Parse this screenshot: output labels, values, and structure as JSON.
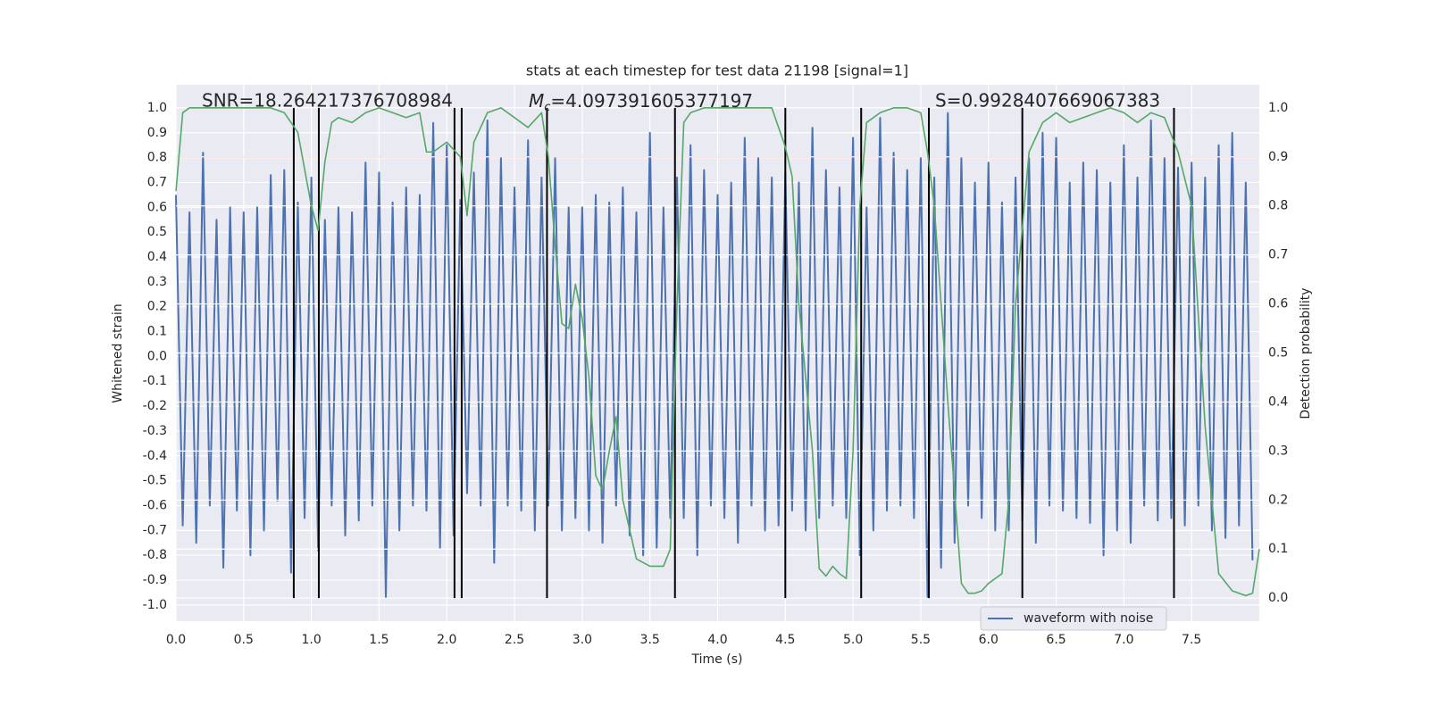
{
  "chart_data": {
    "type": "line",
    "title": "stats at each timestep for test data 21198 [signal=1]",
    "xlabel": "Time (s)",
    "ylabel": "Whitened strain",
    "y2label": "Detection probability",
    "annotations": [
      "SNR=18.264217376708984",
      "S=0.9928407669067383"
    ],
    "mc_annotation": {
      "symbol": "M",
      "subscript": "c",
      "text": "=4.097391605377197"
    },
    "xlim": [
      0,
      8
    ],
    "xticks": [
      {
        "value": 0,
        "label": "0.0"
      },
      0.5,
      {
        "value": 1,
        "label": "1.0"
      },
      1.5,
      {
        "value": 2,
        "label": "2.0"
      },
      2.5,
      {
        "value": 3,
        "label": "3.0"
      },
      3.5,
      {
        "value": 4,
        "label": "4.0"
      },
      4.5,
      {
        "value": 5,
        "label": "5.0"
      },
      5.5,
      {
        "value": 6,
        "label": "6.0"
      },
      6.5,
      {
        "value": 7,
        "label": "7.0"
      },
      7.5
    ],
    "ylim": [
      -1.065,
      1.093
    ],
    "yticks": [
      {
        "value": -1,
        "label": "-1.0"
      },
      -0.9,
      -0.8,
      -0.7,
      -0.6,
      -0.5,
      -0.4,
      -0.3,
      -0.2,
      -0.1,
      {
        "value": 0,
        "label": "0.0"
      },
      0.1,
      0.2,
      0.3,
      0.4,
      0.5,
      0.6,
      0.7,
      0.8,
      0.9,
      {
        "value": 1,
        "label": "1.0"
      }
    ],
    "y2lim": [
      -0.047,
      1.047
    ],
    "y2ticks": [
      {
        "value": 0,
        "label": "0.0"
      },
      0.1,
      0.2,
      0.3,
      0.4,
      0.5,
      0.6,
      0.7,
      0.8,
      0.9,
      {
        "value": 1,
        "label": "1.0"
      }
    ],
    "grid": true,
    "legend": "lower right",
    "threshold": 0.9,
    "threshold_color": "#c03d3e",
    "vlines": [
      0.87,
      1.055,
      2.057,
      2.11,
      2.74,
      3.685,
      4.5,
      5.06,
      5.56,
      6.25,
      7.37
    ],
    "vline_range": [
      0,
      1
    ],
    "vline_color": "#000000",
    "series": [
      {
        "name": "waveform with noise",
        "color": "#4c72b0",
        "x": [
          0,
          0.05,
          0.1,
          0.15,
          0.2,
          0.25,
          0.3,
          0.35,
          0.4,
          0.45,
          0.5,
          0.55,
          0.6,
          0.65,
          0.7,
          0.75,
          0.8,
          0.85,
          0.9,
          0.95,
          1,
          1.05,
          1.1,
          1.15,
          1.2,
          1.25,
          1.3,
          1.35,
          1.4,
          1.45,
          1.5,
          1.55,
          1.6,
          1.65,
          1.7,
          1.75,
          1.8,
          1.85,
          1.9,
          1.95,
          2,
          2.05,
          2.1,
          2.15,
          2.2,
          2.25,
          2.3,
          2.35,
          2.4,
          2.45,
          2.5,
          2.55,
          2.6,
          2.65,
          2.7,
          2.75,
          2.8,
          2.85,
          2.9,
          2.95,
          3,
          3.05,
          3.1,
          3.15,
          3.2,
          3.25,
          3.3,
          3.35,
          3.4,
          3.45,
          3.5,
          3.55,
          3.6,
          3.65,
          3.7,
          3.75,
          3.8,
          3.85,
          3.9,
          3.95,
          4,
          4.05,
          4.1,
          4.15,
          4.2,
          4.25,
          4.3,
          4.35,
          4.4,
          4.45,
          4.5,
          4.55,
          4.6,
          4.65,
          4.7,
          4.75,
          4.8,
          4.85,
          4.9,
          4.95,
          5,
          5.05,
          5.1,
          5.15,
          5.2,
          5.25,
          5.3,
          5.35,
          5.4,
          5.45,
          5.5,
          5.55,
          5.6,
          5.65,
          5.7,
          5.75,
          5.8,
          5.85,
          5.9,
          5.95,
          6,
          6.05,
          6.1,
          6.15,
          6.2,
          6.25,
          6.3,
          6.35,
          6.4,
          6.45,
          6.5,
          6.55,
          6.6,
          6.65,
          6.7,
          6.75,
          6.8,
          6.85,
          6.9,
          6.95,
          7,
          7.05,
          7.1,
          7.15,
          7.2,
          7.25,
          7.3,
          7.35,
          7.4,
          7.45,
          7.5,
          7.55,
          7.6,
          7.65,
          7.7,
          7.75,
          7.8,
          7.85,
          7.9,
          7.95
        ],
        "values": [
          0.65,
          -0.68,
          0.58,
          -0.75,
          0.82,
          -0.6,
          0.55,
          -0.85,
          0.6,
          -0.62,
          0.58,
          -0.8,
          0.6,
          -0.7,
          0.73,
          -0.58,
          0.75,
          -0.87,
          0.62,
          -0.65,
          0.72,
          -0.78,
          0.55,
          -0.6,
          0.6,
          -0.72,
          0.58,
          -0.66,
          0.78,
          -0.6,
          0.74,
          -0.97,
          0.62,
          -0.7,
          0.68,
          -0.6,
          0.65,
          -0.62,
          0.94,
          -0.77,
          0.85,
          -0.72,
          0.63,
          -0.55,
          0.74,
          -0.6,
          0.95,
          -0.83,
          0.8,
          -0.6,
          0.68,
          -0.62,
          0.87,
          -0.7,
          0.72,
          -0.6,
          0.8,
          -0.7,
          0.6,
          -0.65,
          0.6,
          -0.7,
          0.65,
          -0.75,
          0.62,
          -0.6,
          0.68,
          -0.72,
          0.58,
          -0.8,
          0.9,
          -0.77,
          0.6,
          -0.65,
          0.72,
          -0.65,
          0.85,
          -0.8,
          0.75,
          -0.6,
          0.65,
          -0.65,
          0.7,
          -0.75,
          0.88,
          -0.6,
          0.8,
          -0.7,
          0.72,
          -0.68,
          0.74,
          -0.62,
          0.7,
          -0.7,
          0.92,
          -0.65,
          0.75,
          -0.6,
          0.68,
          -0.65,
          0.88,
          -0.8,
          0.6,
          -0.7,
          0.96,
          -0.62,
          0.82,
          -0.6,
          0.75,
          -0.65,
          0.8,
          -0.97,
          0.72,
          -0.85,
          0.98,
          -0.75,
          0.8,
          -0.6,
          0.7,
          -0.65,
          0.78,
          -0.7,
          0.62,
          -0.7,
          0.72,
          -0.66,
          0.8,
          -0.75,
          0.9,
          -0.6,
          0.88,
          -0.62,
          0.7,
          -0.65,
          0.78,
          -0.67,
          0.75,
          -0.8,
          0.7,
          -0.7,
          0.85,
          -0.75,
          0.72,
          -0.6,
          0.95,
          -0.66,
          0.8,
          -0.65,
          0.76,
          -0.68,
          0.78,
          -0.6,
          0.72,
          -0.7,
          0.85,
          -0.73,
          0.9,
          -0.68,
          0.7,
          -0.82
        ]
      },
      {
        "color": "#55a868",
        "axis": "y2",
        "x": [
          0,
          0.05,
          0.1,
          0.2,
          0.3,
          0.4,
          0.5,
          0.6,
          0.7,
          0.8,
          0.9,
          1,
          1.05,
          1.1,
          1.15,
          1.2,
          1.3,
          1.4,
          1.5,
          1.6,
          1.7,
          1.8,
          1.85,
          1.9,
          2,
          2.1,
          2.15,
          2.2,
          2.3,
          2.4,
          2.5,
          2.6,
          2.7,
          2.75,
          2.8,
          2.85,
          2.9,
          2.95,
          3,
          3.05,
          3.1,
          3.15,
          3.2,
          3.25,
          3.3,
          3.4,
          3.5,
          3.6,
          3.65,
          3.7,
          3.75,
          3.8,
          3.9,
          4,
          4.1,
          4.2,
          4.3,
          4.4,
          4.5,
          4.55,
          4.6,
          4.7,
          4.75,
          4.8,
          4.85,
          4.9,
          4.95,
          5,
          5.05,
          5.1,
          5.2,
          5.3,
          5.4,
          5.5,
          5.55,
          5.6,
          5.7,
          5.8,
          5.85,
          5.9,
          5.95,
          6,
          6.1,
          6.15,
          6.2,
          6.3,
          6.4,
          6.5,
          6.6,
          6.7,
          6.8,
          6.9,
          7,
          7.1,
          7.2,
          7.3,
          7.4,
          7.5,
          7.6,
          7.7,
          7.8,
          7.9,
          7.95,
          8
        ],
        "values": [
          0.83,
          0.99,
          1,
          1,
          1,
          1,
          1,
          1,
          1,
          0.99,
          0.95,
          0.8,
          0.75,
          0.89,
          0.97,
          0.98,
          0.97,
          0.99,
          1,
          0.99,
          0.98,
          0.99,
          0.91,
          0.91,
          0.93,
          0.9,
          0.78,
          0.93,
          0.99,
          1,
          0.98,
          0.96,
          0.99,
          0.9,
          0.72,
          0.56,
          0.55,
          0.64,
          0.57,
          0.45,
          0.25,
          0.22,
          0.3,
          0.37,
          0.2,
          0.08,
          0.065,
          0.065,
          0.1,
          0.6,
          0.97,
          0.99,
          1,
          1,
          1,
          1,
          1,
          1,
          0.92,
          0.86,
          0.6,
          0.3,
          0.06,
          0.045,
          0.065,
          0.05,
          0.04,
          0.3,
          0.8,
          0.97,
          0.99,
          1,
          1,
          0.99,
          0.91,
          0.8,
          0.4,
          0.03,
          0.01,
          0.01,
          0.015,
          0.03,
          0.05,
          0.2,
          0.6,
          0.91,
          0.97,
          0.99,
          0.97,
          0.98,
          0.99,
          1,
          0.99,
          0.97,
          0.99,
          0.98,
          0.91,
          0.8,
          0.35,
          0.05,
          0.015,
          0.005,
          0.01,
          0.1
        ]
      }
    ]
  }
}
